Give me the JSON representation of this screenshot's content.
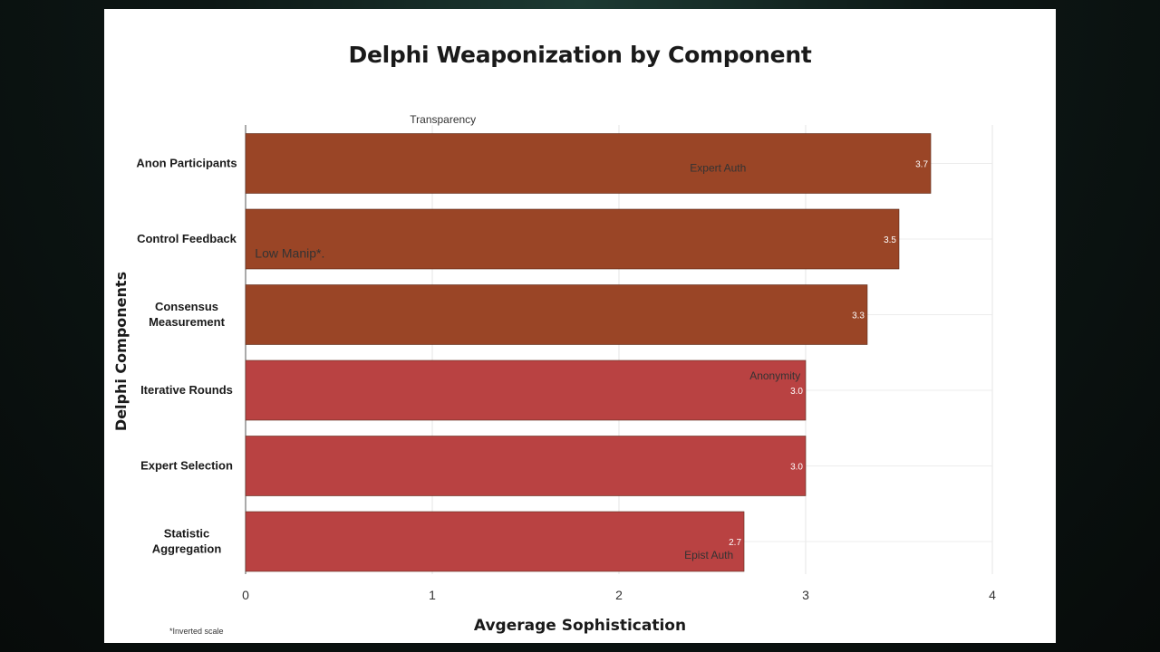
{
  "chart_data": {
    "type": "bar",
    "orientation": "horizontal",
    "title": "Delphi Weaponization by Component",
    "xlabel": "Avgerage Sophistication",
    "ylabel": "Delphi Components",
    "xlim": [
      0,
      4
    ],
    "xticks": [
      "0",
      "1",
      "2",
      "3",
      "4"
    ],
    "categories": [
      "Anon Participants",
      "Control Feedback",
      "Consensus Measurement",
      "Iterative Rounds",
      "Expert Selection",
      "Statistic Aggregation"
    ],
    "values": [
      3.67,
      3.5,
      3.33,
      3.0,
      3.0,
      2.67
    ],
    "value_labels": [
      "3.7",
      "3.5",
      "3.3",
      "3.0",
      "3.0",
      "2.7"
    ],
    "bar_colors": [
      "#9a4526",
      "#9a4526",
      "#9a4526",
      "#b94242",
      "#b94242",
      "#b94242"
    ],
    "annotations": [
      {
        "text": "Transparency",
        "x": 0.88,
        "y": -0.58
      },
      {
        "text": "Expert Auth",
        "x": 2.38,
        "y": 0.06
      },
      {
        "text": "Low Manip*.",
        "x": 0.05,
        "y": 1.2
      },
      {
        "text": "Anonymity",
        "x": 2.7,
        "y": 2.81
      },
      {
        "text": "Epist Auth",
        "x": 2.35,
        "y": 5.18
      }
    ],
    "footnote": "*Inverted scale",
    "grid": true
  }
}
